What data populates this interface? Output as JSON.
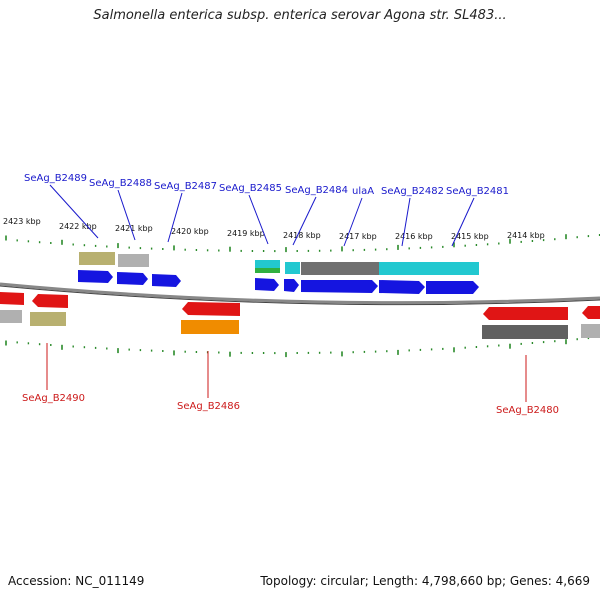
{
  "title": "Salmonella enterica subsp. enterica serovar Agona str. SL483...",
  "accession": "Accession: NC_011149",
  "summary": "Topology: circular; Length: 4,798,660 bp; Genes: 4,669",
  "kbp_labels": [
    "2423 kbp",
    "2422 kbp",
    "2421 kbp",
    "2420 kbp",
    "2419 kbp",
    "2418 kbp",
    "2417 kbp",
    "2416 kbp",
    "2415 kbp",
    "2414 kbp"
  ],
  "top_genes": [
    "SeAg_B2489",
    "SeAg_B2488",
    "SeAg_B2487",
    "SeAg_B2485",
    "SeAg_B2484",
    "ulaA",
    "SeAg_B2482",
    "SeAg_B2481"
  ],
  "bottom_genes": [
    "SeAg_B2490",
    "SeAg_B2486",
    "SeAg_B2480"
  ],
  "colors": {
    "forward": "#1515e0",
    "reverse": "#e01515",
    "orange": "#f08c00",
    "cyan": "#22c8d0",
    "green": "#30b040",
    "khaki": "#b8b070",
    "gray": "#a8a8a8",
    "darkgray": "#606060",
    "tick": "#2a8a2a",
    "backbone": "#888888"
  }
}
